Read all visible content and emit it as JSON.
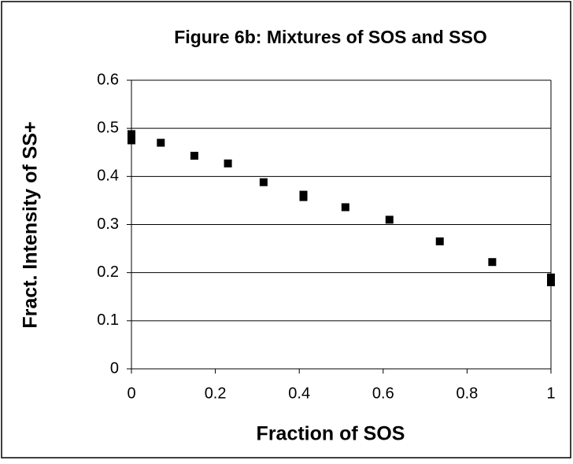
{
  "chart_data": {
    "type": "scatter",
    "title": "Figure 6b: Mixtures of SOS and SSO",
    "x_label": "Fraction of SOS",
    "y_label": "Fract. Intensity of SS+",
    "x": [
      0,
      0,
      0.07,
      0.15,
      0.23,
      0.315,
      0.41,
      0.41,
      0.51,
      0.615,
      0.735,
      0.86,
      1,
      1
    ],
    "values": [
      0.488,
      0.475,
      0.47,
      0.443,
      0.427,
      0.388,
      0.362,
      0.357,
      0.336,
      0.31,
      0.265,
      0.222,
      0.19,
      0.18
    ],
    "color": "#000000",
    "xlim": [
      0,
      1
    ],
    "xticks": [
      0,
      0.2,
      0.4,
      0.6,
      0.8,
      1
    ],
    "ylim": [
      0,
      0.6
    ],
    "yticks": [
      0,
      0.1,
      0.2,
      0.3,
      0.4,
      0.5,
      0.6
    ],
    "grid": true
  }
}
